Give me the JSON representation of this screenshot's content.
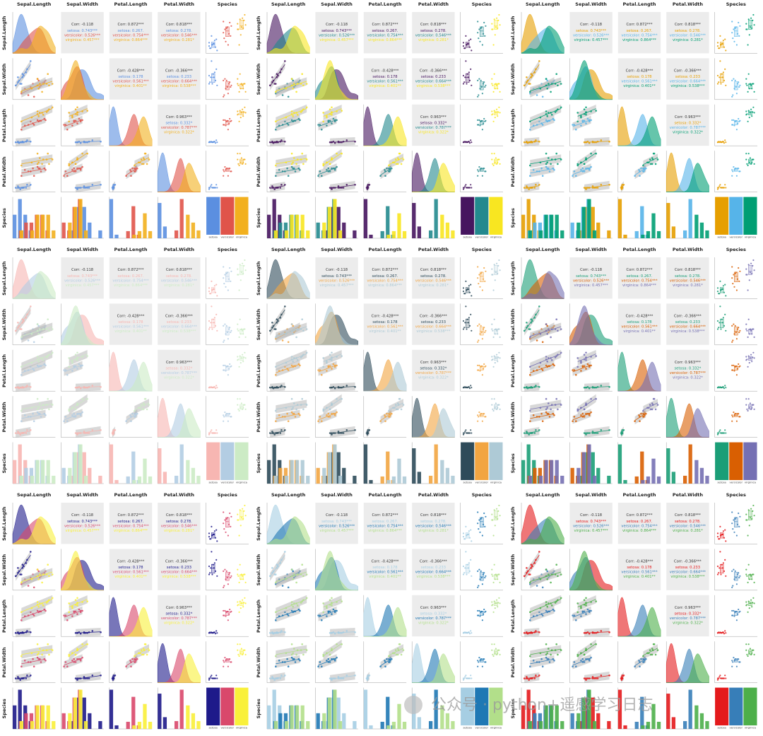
{
  "variables": [
    "Sepal.Length",
    "Sepal.Width",
    "Petal.Length",
    "Petal.Width",
    "Species"
  ],
  "species": [
    "setosa",
    "versicolor",
    "virginica"
  ],
  "correlations": [
    {
      "label": "Corr: -0.118",
      "by_species": [
        "setosa: 0.743***",
        "versicolor: 0.526***",
        "virginica: 0.457***"
      ]
    },
    {
      "label": "Corr: 0.872***",
      "by_species": [
        "setosa: 0.267.",
        "versicolor: 0.754***",
        "virginica: 0.864***"
      ]
    },
    {
      "label": "Corr: 0.818***",
      "by_species": [
        "setosa: 0.278.",
        "versicolor: 0.546***",
        "virginica: 0.281*"
      ]
    },
    {
      "label": "Corr: -0.428***",
      "by_species": [
        "setosa: 0.178",
        "versicolor: 0.561***",
        "virginica: 0.401**"
      ]
    },
    {
      "label": "Corr: -0.366***",
      "by_species": [
        "setosa: 0.233",
        "versicolor: 0.664***",
        "virginica: 0.538***"
      ]
    },
    {
      "label": "Corr: 0.963***",
      "by_species": [
        "setosa: 0.332*",
        "versicolor: 0.787***",
        "virginica: 0.322*"
      ]
    }
  ],
  "palettes": [
    [
      "#5b8fe0",
      "#e0544a",
      "#f2b01e"
    ],
    [
      "#46155f",
      "#23898e",
      "#f8e621"
    ],
    [
      "#e69f00",
      "#56b4e9",
      "#009e73"
    ],
    [
      "#f7b6b2",
      "#b3cde3",
      "#ccebc5"
    ],
    [
      "#2e4b5a",
      "#f2a541",
      "#aecad6"
    ],
    [
      "#1b9e77",
      "#d95f02",
      "#7570b3"
    ],
    [
      "#1e1a8a",
      "#d9486b",
      "#f9f03a"
    ],
    [
      "#a6cee3",
      "#1f78b4",
      "#b2df8a"
    ],
    [
      "#e41a1c",
      "#377eb8",
      "#4daf4a"
    ]
  ],
  "observations": [
    [
      [
        5.1,
        3.5,
        1.4,
        0.2
      ],
      [
        4.9,
        3.0,
        1.4,
        0.2
      ],
      [
        4.7,
        3.2,
        1.3,
        0.2
      ],
      [
        4.6,
        3.1,
        1.5,
        0.2
      ],
      [
        5.0,
        3.6,
        1.4,
        0.2
      ],
      [
        5.4,
        3.9,
        1.7,
        0.4
      ],
      [
        4.6,
        3.4,
        1.4,
        0.3
      ],
      [
        5.0,
        3.4,
        1.5,
        0.2
      ],
      [
        4.4,
        2.9,
        1.4,
        0.2
      ],
      [
        5.7,
        4.4,
        1.5,
        0.4
      ],
      [
        5.3,
        3.7,
        1.5,
        0.2
      ],
      [
        4.8,
        3.0,
        1.4,
        0.1
      ]
    ],
    [
      [
        7.0,
        3.2,
        4.7,
        1.4
      ],
      [
        6.4,
        3.2,
        4.5,
        1.5
      ],
      [
        6.9,
        3.1,
        4.9,
        1.5
      ],
      [
        5.5,
        2.3,
        4.0,
        1.3
      ],
      [
        6.5,
        2.8,
        4.6,
        1.5
      ],
      [
        5.7,
        2.8,
        4.5,
        1.3
      ],
      [
        6.3,
        3.3,
        4.7,
        1.6
      ],
      [
        4.9,
        2.4,
        3.3,
        1.0
      ],
      [
        6.6,
        2.9,
        4.6,
        1.3
      ],
      [
        5.2,
        2.7,
        3.9,
        1.4
      ],
      [
        5.9,
        3.0,
        4.2,
        1.5
      ],
      [
        6.0,
        2.2,
        4.0,
        1.0
      ]
    ],
    [
      [
        6.3,
        3.3,
        6.0,
        2.5
      ],
      [
        5.8,
        2.7,
        5.1,
        1.9
      ],
      [
        7.1,
        3.0,
        5.9,
        2.1
      ],
      [
        6.3,
        2.9,
        5.6,
        1.8
      ],
      [
        6.5,
        3.0,
        5.8,
        2.2
      ],
      [
        7.6,
        3.0,
        6.6,
        2.1
      ],
      [
        4.9,
        2.5,
        4.5,
        1.7
      ],
      [
        7.3,
        2.9,
        6.3,
        1.8
      ],
      [
        6.7,
        2.5,
        5.8,
        1.8
      ],
      [
        7.2,
        3.6,
        6.1,
        2.5
      ],
      [
        6.4,
        2.7,
        5.3,
        1.9
      ],
      [
        6.8,
        3.0,
        5.5,
        2.1
      ]
    ]
  ],
  "watermark": "公众号 · python+遥感学习日志"
}
